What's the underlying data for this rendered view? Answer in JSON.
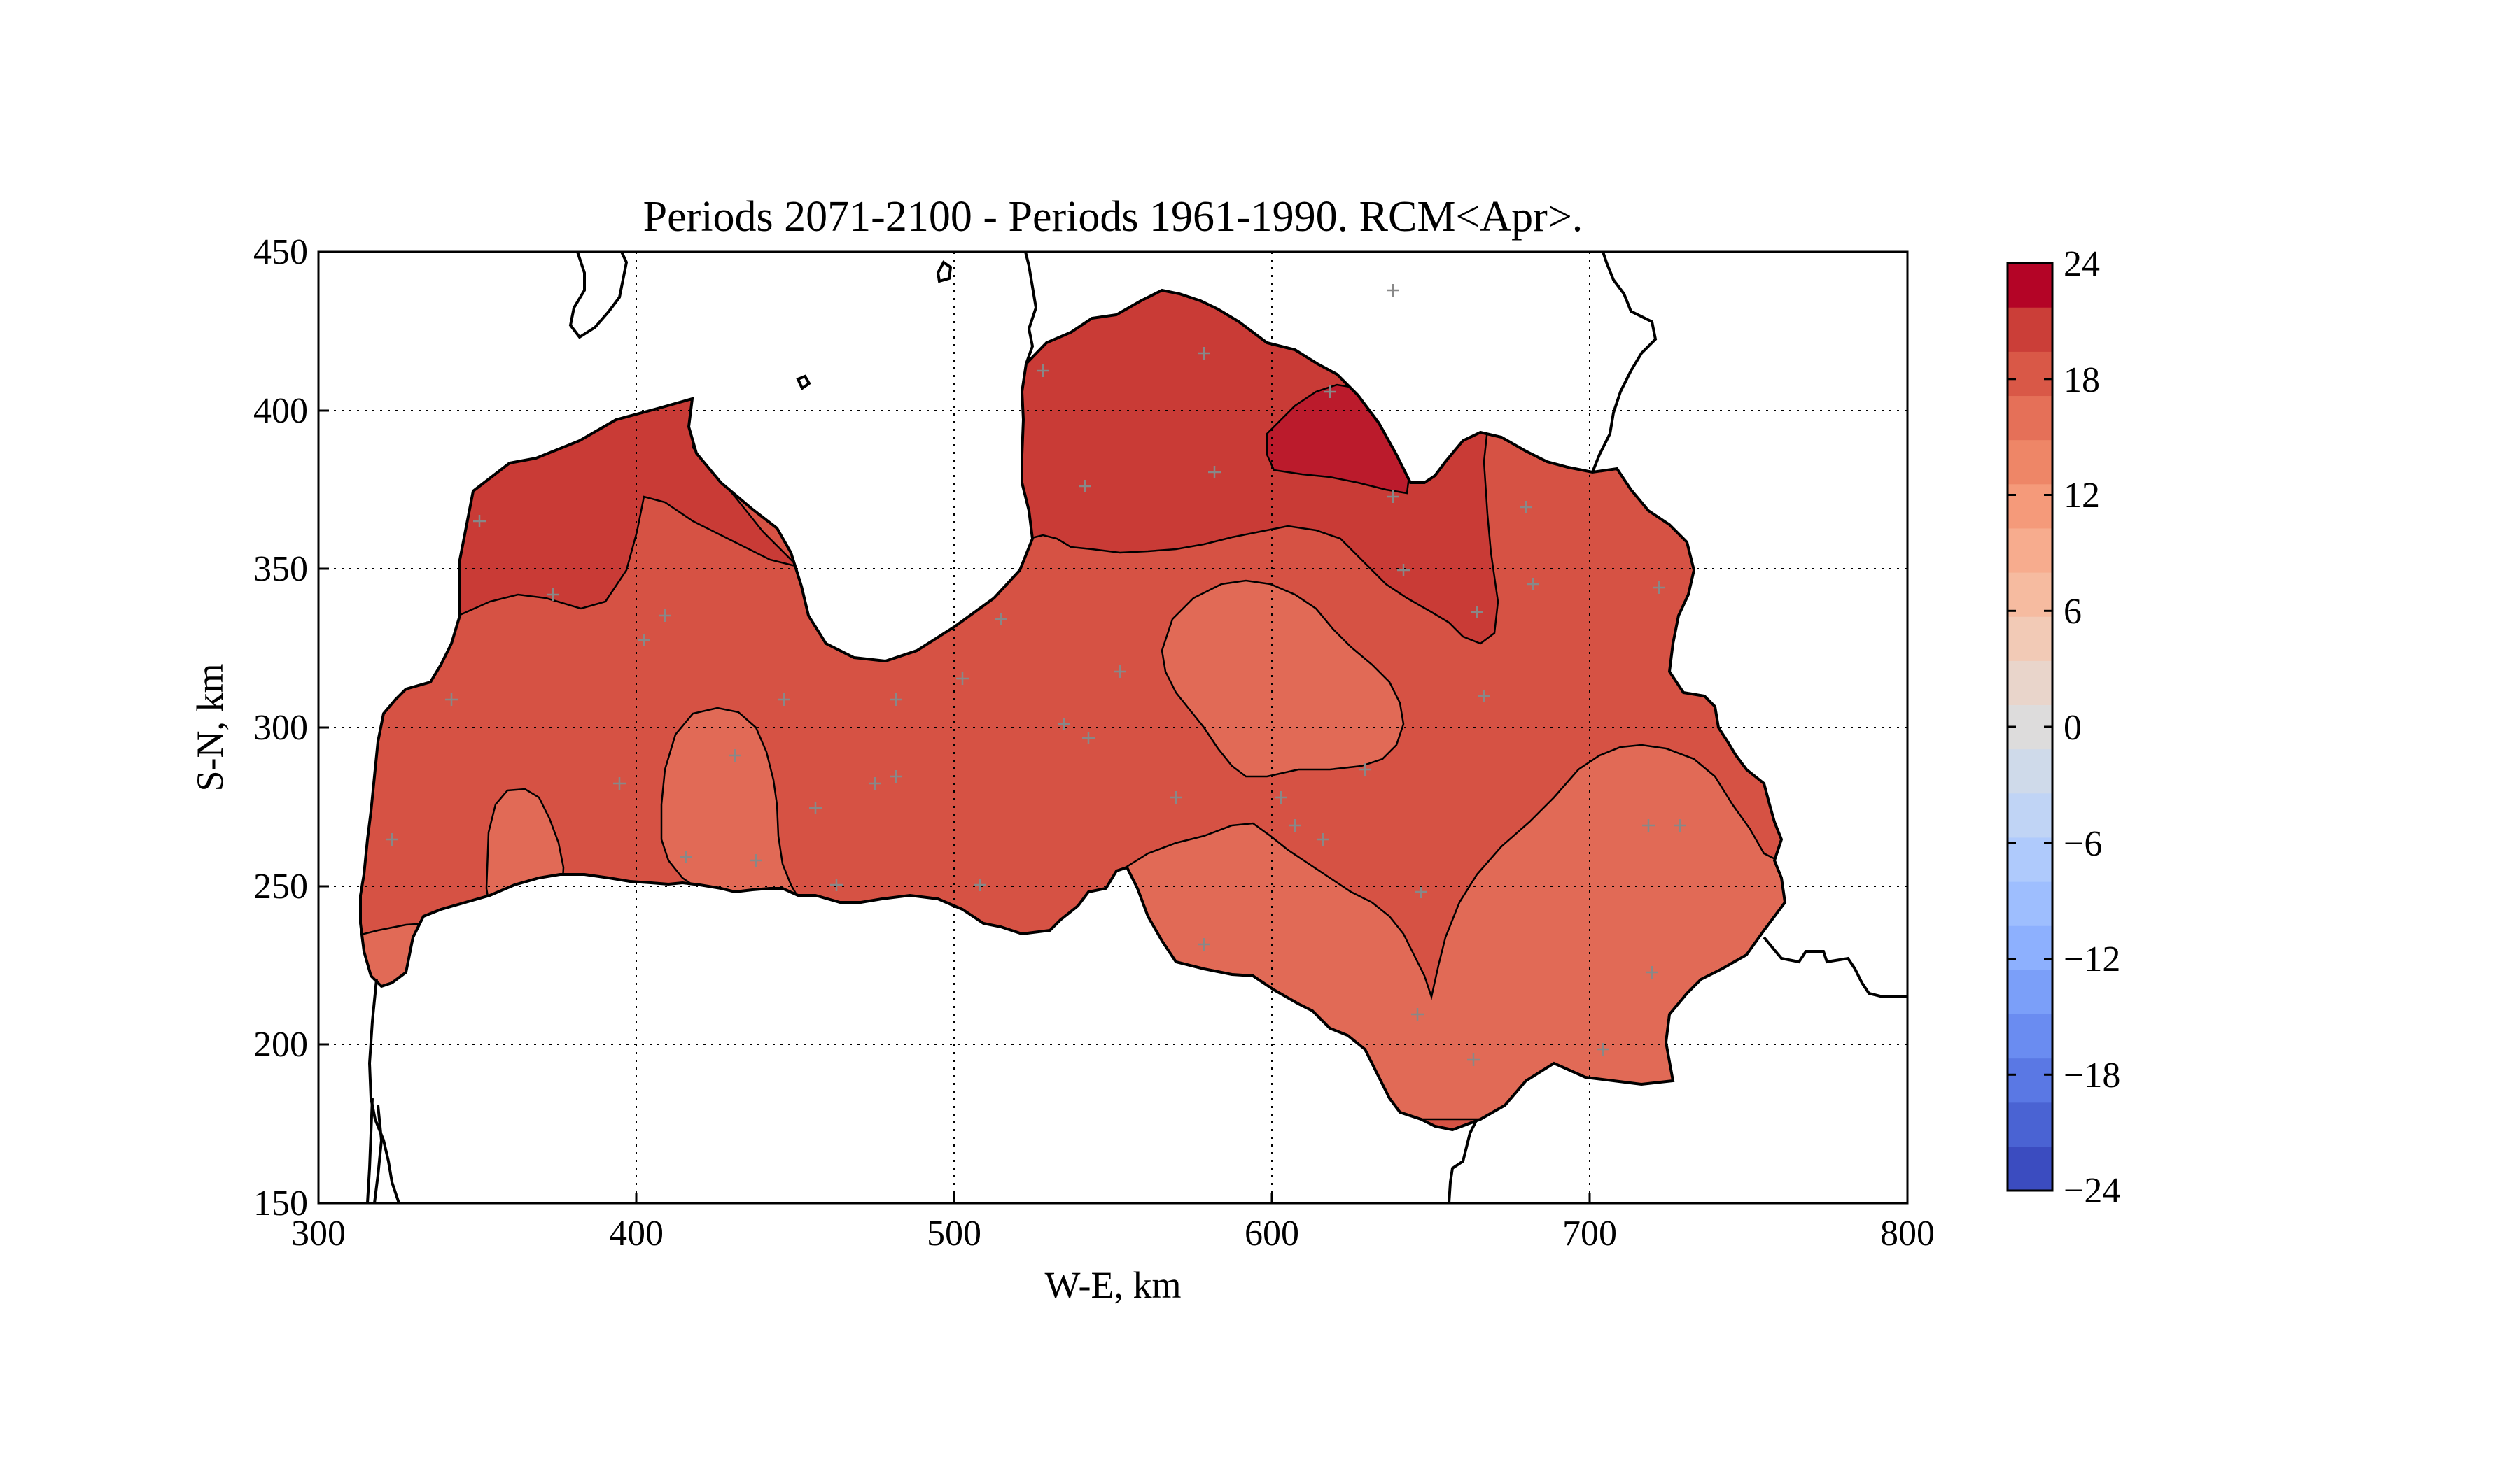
{
  "chart_data": {
    "type": "contour-map",
    "title": "Periods 2071-2100 - Periods 1961-1990. RCM<Apr>.",
    "xlabel": "W-E, km",
    "ylabel": "S-N, km",
    "xlim": [
      300,
      800
    ],
    "ylim": [
      150,
      450
    ],
    "xticks": [
      "300",
      "400",
      "500",
      "600",
      "700",
      "800"
    ],
    "yticks": [
      "150",
      "200",
      "250",
      "300",
      "350",
      "400",
      "450"
    ],
    "grid": true,
    "colorbar": {
      "range": [
        -24,
        24
      ],
      "step": 3,
      "tick_labels": [
        "24",
        "18",
        "12",
        "6",
        "0",
        "−6",
        "−12",
        "−18",
        "−24"
      ],
      "colormap": "coolwarm",
      "colors": [
        "#3b4cc0",
        "#4a63d3",
        "#5a78e4",
        "#6a8cf1",
        "#7b9ff9",
        "#8db0fe",
        "#9ebefe",
        "#afcafc",
        "#c0d4f5",
        "#cfdaea",
        "#dddcdc",
        "#e9d5cb",
        "#f2cab6",
        "#f6bba0",
        "#f7ac8e",
        "#f59a7a",
        "#ee8667",
        "#e57058",
        "#d95847",
        "#cb3e38",
        "#b40426"
      ]
    },
    "filled_levels": [
      {
        "range": [
          21,
          24
        ],
        "color": "#bb1b2c",
        "region": "small area near Lake Burtnieki (north)"
      },
      {
        "range": [
          18,
          21
        ],
        "color": "#c93b36",
        "region": "north coast Vidzeme and north Kurzeme"
      },
      {
        "range": [
          15,
          18
        ],
        "color": "#d65244",
        "region": "most of the country"
      },
      {
        "range": [
          12,
          15
        ],
        "color": "#e16a56",
        "region": "central-east island, Latgale south-east, south-west patches"
      }
    ]
  }
}
